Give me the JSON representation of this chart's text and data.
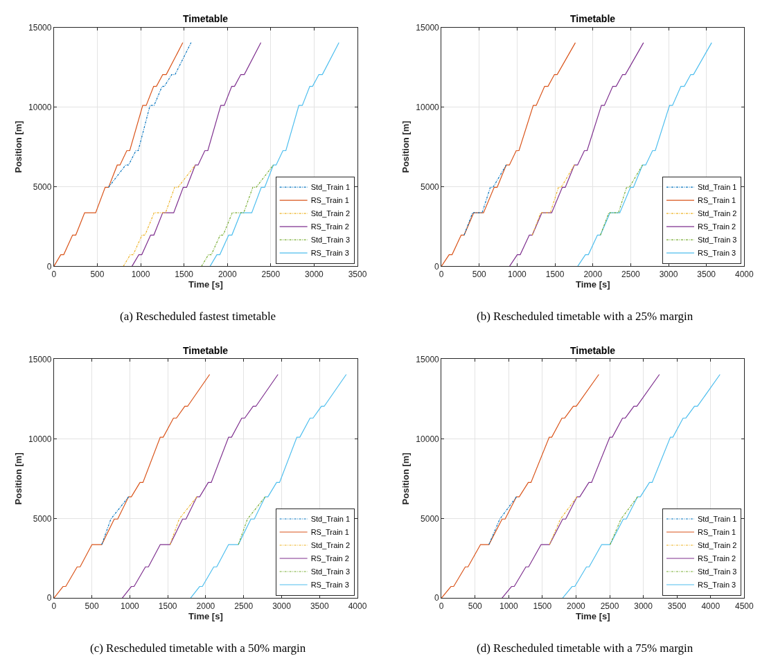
{
  "chart_data": [
    {
      "type": "line",
      "title": "Timetable",
      "xlabel": "Time [s]",
      "ylabel": "Position [m]",
      "xlim": [
        0,
        3500
      ],
      "xticks": [
        0,
        500,
        1000,
        1500,
        2000,
        2500,
        3000,
        3500
      ],
      "ylim": [
        0,
        15000
      ],
      "yticks": [
        0,
        5000,
        10000,
        15000
      ],
      "grid": true,
      "legend": "bottom right",
      "annotations": [
        "(a) Rescheduled fastest timetable"
      ],
      "series": [
        {
          "name": "Std_Train 1",
          "color": "#0072bd",
          "line_style": "dashdot",
          "x": [
            630,
            827,
            861,
            945,
            972,
            1108,
            1155,
            1247,
            1274,
            1358,
            1397,
            1581
          ],
          "values": [
            4960,
            6360,
            6360,
            7260,
            7260,
            10100,
            10100,
            11300,
            11300,
            12040,
            12040,
            14040
          ]
        },
        {
          "name": "RS_Train 1",
          "color": "#d95319",
          "line_style": "solid",
          "x": [
            0,
            79,
            113,
            215,
            252,
            354,
            481,
            591,
            630,
            730,
            762,
            840,
            874,
            1024,
            1064,
            1150,
            1182,
            1255,
            1295,
            1486
          ],
          "values": [
            0,
            730,
            730,
            1960,
            1960,
            3360,
            3360,
            4960,
            4960,
            6360,
            6360,
            7260,
            7260,
            10100,
            10100,
            11300,
            11300,
            12040,
            12040,
            14040
          ]
        },
        {
          "name": "Std_Train 2",
          "color": "#edb120",
          "line_style": "dashdot",
          "x": [
            801,
            880,
            914,
            1016,
            1050,
            1155,
            1287,
            1392,
            1431,
            1630
          ],
          "values": [
            0,
            730,
            730,
            1960,
            1960,
            3360,
            3360,
            4960,
            4960,
            6360
          ]
        },
        {
          "name": "RS_Train 2",
          "color": "#7e2f8e",
          "line_style": "solid",
          "x": [
            900,
            979,
            1013,
            1115,
            1152,
            1254,
            1381,
            1491,
            1530,
            1630,
            1662,
            1740,
            1774,
            1924,
            1964,
            2050,
            2082,
            2155,
            2195,
            2386
          ],
          "values": [
            0,
            730,
            730,
            1960,
            1960,
            3360,
            3360,
            4960,
            4960,
            6360,
            6360,
            7260,
            7260,
            10100,
            10100,
            11300,
            11300,
            12040,
            12040,
            14040
          ]
        },
        {
          "name": "Std_Train 3",
          "color": "#77ac30",
          "line_style": "dashdot",
          "x": [
            1702,
            1781,
            1815,
            1917,
            1951,
            2056,
            2188,
            2293,
            2332,
            2530
          ],
          "values": [
            0,
            730,
            730,
            1960,
            1960,
            3360,
            3360,
            4960,
            4960,
            6360
          ]
        },
        {
          "name": "RS_Train 3",
          "color": "#4dbeee",
          "line_style": "solid",
          "x": [
            1800,
            1879,
            1913,
            2015,
            2052,
            2154,
            2281,
            2391,
            2430,
            2530,
            2562,
            2640,
            2674,
            2824,
            2864,
            2950,
            2982,
            3055,
            3095,
            3286
          ],
          "values": [
            0,
            730,
            730,
            1960,
            1960,
            3360,
            3360,
            4960,
            4960,
            6360,
            6360,
            7260,
            7260,
            10100,
            10100,
            11300,
            11300,
            12040,
            12040,
            14040
          ]
        }
      ]
    },
    {
      "type": "line",
      "title": "Timetable",
      "xlabel": "Time [s]",
      "ylabel": "Position [m]",
      "xlim": [
        0,
        4000
      ],
      "xticks": [
        0,
        500,
        1000,
        1500,
        2000,
        2500,
        3000,
        3500,
        4000
      ],
      "ylim": [
        0,
        15000
      ],
      "yticks": [
        0,
        5000,
        10000,
        15000
      ],
      "grid": true,
      "legend": "bottom right",
      "annotations": [
        "(b) Rescheduled timetable with a 25% margin"
      ],
      "series": [
        {
          "name": "Std_Train 1",
          "color": "#0072bd",
          "line_style": "dashdot",
          "x": [
            300,
            411,
            538,
            646,
            682,
            856
          ],
          "values": [
            1960,
            3360,
            3360,
            4960,
            4960,
            6360
          ]
        },
        {
          "name": "RS_Train 1",
          "color": "#d95319",
          "line_style": "solid",
          "x": [
            0,
            102,
            141,
            261,
            300,
            426,
            556,
            697,
            736,
            856,
            898,
            988,
            1024,
            1213,
            1252,
            1363,
            1408,
            1493,
            1529,
            1769
          ],
          "values": [
            0,
            730,
            730,
            1960,
            1960,
            3360,
            3360,
            4960,
            4960,
            6360,
            6360,
            7260,
            7260,
            10100,
            10100,
            11300,
            11300,
            12040,
            12040,
            14040
          ]
        },
        {
          "name": "Std_Train 2",
          "color": "#edb120",
          "line_style": "dashdot",
          "x": [
            1200,
            1311,
            1438,
            1546,
            1582,
            1756
          ],
          "values": [
            1960,
            3360,
            3360,
            4960,
            4960,
            6360
          ]
        },
        {
          "name": "RS_Train 2",
          "color": "#7e2f8e",
          "line_style": "solid",
          "x": [
            900,
            1002,
            1041,
            1161,
            1200,
            1326,
            1456,
            1597,
            1636,
            1756,
            1798,
            1888,
            1924,
            2113,
            2152,
            2263,
            2308,
            2393,
            2429,
            2669
          ],
          "values": [
            0,
            730,
            730,
            1960,
            1960,
            3360,
            3360,
            4960,
            4960,
            6360,
            6360,
            7260,
            7260,
            10100,
            10100,
            11300,
            11300,
            12040,
            12040,
            14040
          ]
        },
        {
          "name": "Std_Train 3",
          "color": "#77ac30",
          "line_style": "dashdot",
          "x": [
            2100,
            2211,
            2338,
            2446,
            2482,
            2656
          ],
          "values": [
            1960,
            3360,
            3360,
            4960,
            4960,
            6360
          ]
        },
        {
          "name": "RS_Train 3",
          "color": "#4dbeee",
          "line_style": "solid",
          "x": [
            1800,
            1902,
            1941,
            2061,
            2100,
            2226,
            2356,
            2497,
            2536,
            2656,
            2698,
            2788,
            2824,
            3013,
            3052,
            3163,
            3208,
            3293,
            3329,
            3569
          ],
          "values": [
            0,
            730,
            730,
            1960,
            1960,
            3360,
            3360,
            4960,
            4960,
            6360,
            6360,
            7260,
            7260,
            10100,
            10100,
            11300,
            11300,
            12040,
            12040,
            14040
          ]
        }
      ]
    },
    {
      "type": "line",
      "title": "Timetable",
      "xlabel": "Time [s]",
      "ylabel": "Position [m]",
      "xlim": [
        0,
        4000
      ],
      "xticks": [
        0,
        500,
        1000,
        1500,
        2000,
        2500,
        3000,
        3500,
        4000
      ],
      "ylim": [
        0,
        15000
      ],
      "yticks": [
        0,
        5000,
        10000,
        15000
      ],
      "grid": true,
      "legend": "bottom right",
      "annotations": [
        "(c) Rescheduled timetable with a 50% margin"
      ],
      "series": [
        {
          "name": "Std_Train 1",
          "color": "#0072bd",
          "line_style": "dashdot",
          "x": [
            630,
            750,
            984
          ],
          "values": [
            3360,
            4960,
            6360
          ]
        },
        {
          "name": "RS_Train 1",
          "color": "#d95319",
          "line_style": "solid",
          "x": [
            0,
            120,
            156,
            306,
            345,
            501,
            630,
            795,
            840,
            984,
            1020,
            1134,
            1173,
            1401,
            1440,
            1575,
            1614,
            1725,
            1761,
            2052
          ],
          "values": [
            0,
            730,
            730,
            1960,
            1960,
            3360,
            3360,
            4960,
            4960,
            6360,
            6360,
            7260,
            7260,
            10100,
            10100,
            11300,
            11300,
            12040,
            12040,
            14040
          ]
        },
        {
          "name": "Std_Train 2",
          "color": "#edb120",
          "line_style": "dashdot",
          "x": [
            1530,
            1650,
            1884
          ],
          "values": [
            3360,
            4960,
            6360
          ]
        },
        {
          "name": "RS_Train 2",
          "color": "#7e2f8e",
          "line_style": "solid",
          "x": [
            900,
            1020,
            1056,
            1206,
            1245,
            1401,
            1530,
            1695,
            1740,
            1884,
            1920,
            2034,
            2073,
            2301,
            2340,
            2475,
            2514,
            2625,
            2661,
            2952
          ],
          "values": [
            0,
            730,
            730,
            1960,
            1960,
            3360,
            3360,
            4960,
            4960,
            6360,
            6360,
            7260,
            7260,
            10100,
            10100,
            11300,
            11300,
            12040,
            12040,
            14040
          ]
        },
        {
          "name": "Std_Train 3",
          "color": "#77ac30",
          "line_style": "dashdot",
          "x": [
            2430,
            2550,
            2784
          ],
          "values": [
            3360,
            4960,
            6360
          ]
        },
        {
          "name": "RS_Train 3",
          "color": "#4dbeee",
          "line_style": "solid",
          "x": [
            1800,
            1920,
            1956,
            2106,
            2145,
            2301,
            2430,
            2595,
            2640,
            2784,
            2820,
            2934,
            2973,
            3201,
            3240,
            3375,
            3414,
            3525,
            3561,
            3852
          ],
          "values": [
            0,
            730,
            730,
            1960,
            1960,
            3360,
            3360,
            4960,
            4960,
            6360,
            6360,
            7260,
            7260,
            10100,
            10100,
            11300,
            11300,
            12040,
            12040,
            14040
          ]
        }
      ]
    },
    {
      "type": "line",
      "title": "Timetable",
      "xlabel": "Time [s]",
      "ylabel": "Position [m]",
      "xlim": [
        0,
        4500
      ],
      "xticks": [
        0,
        500,
        1000,
        1500,
        2000,
        2500,
        3000,
        3500,
        4000,
        4500
      ],
      "ylim": [
        0,
        15000
      ],
      "yticks": [
        0,
        5000,
        10000,
        15000
      ],
      "grid": true,
      "legend": "bottom right",
      "annotations": [
        "(d) Rescheduled timetable with a 75% margin"
      ],
      "series": [
        {
          "name": "Std_Train 1",
          "color": "#0072bd",
          "line_style": "dashdot",
          "x": [
            706,
            868,
            1115
          ],
          "values": [
            3360,
            4960,
            6360
          ]
        },
        {
          "name": "RS_Train 1",
          "color": "#d95319",
          "line_style": "solid",
          "x": [
            0,
            142,
            182,
            355,
            395,
            581,
            706,
            902,
            946,
            1115,
            1156,
            1291,
            1331,
            1602,
            1639,
            1791,
            1832,
            1960,
            2004,
            2339
          ],
          "values": [
            0,
            730,
            730,
            1960,
            1960,
            3360,
            3360,
            4960,
            4960,
            6360,
            6360,
            7260,
            7260,
            10100,
            10100,
            11300,
            11300,
            12040,
            12040,
            14040
          ]
        },
        {
          "name": "Std_Train 2",
          "color": "#edb120",
          "line_style": "dashdot",
          "x": [
            1606,
            1768,
            2015
          ],
          "values": [
            3360,
            4960,
            6360
          ]
        },
        {
          "name": "RS_Train 2",
          "color": "#7e2f8e",
          "line_style": "solid",
          "x": [
            900,
            1042,
            1082,
            1255,
            1295,
            1481,
            1606,
            1802,
            1846,
            2015,
            2056,
            2191,
            2231,
            2502,
            2539,
            2691,
            2732,
            2860,
            2904,
            3239
          ],
          "values": [
            0,
            730,
            730,
            1960,
            1960,
            3360,
            3360,
            4960,
            4960,
            6360,
            6360,
            7260,
            7260,
            10100,
            10100,
            11300,
            11300,
            12040,
            12040,
            14040
          ]
        },
        {
          "name": "Std_Train 3",
          "color": "#77ac30",
          "line_style": "dashdot",
          "x": [
            2506,
            2668,
            2915
          ],
          "values": [
            3360,
            4960,
            6360
          ]
        },
        {
          "name": "RS_Train 3",
          "color": "#4dbeee",
          "line_style": "solid",
          "x": [
            1800,
            1942,
            1982,
            2155,
            2195,
            2381,
            2506,
            2702,
            2746,
            2915,
            2956,
            3091,
            3131,
            3402,
            3439,
            3591,
            3632,
            3760,
            3804,
            4139
          ],
          "values": [
            0,
            730,
            730,
            1960,
            1960,
            3360,
            3360,
            4960,
            4960,
            6360,
            6360,
            7260,
            7260,
            10100,
            10100,
            11300,
            11300,
            12040,
            12040,
            14040
          ]
        }
      ]
    }
  ]
}
